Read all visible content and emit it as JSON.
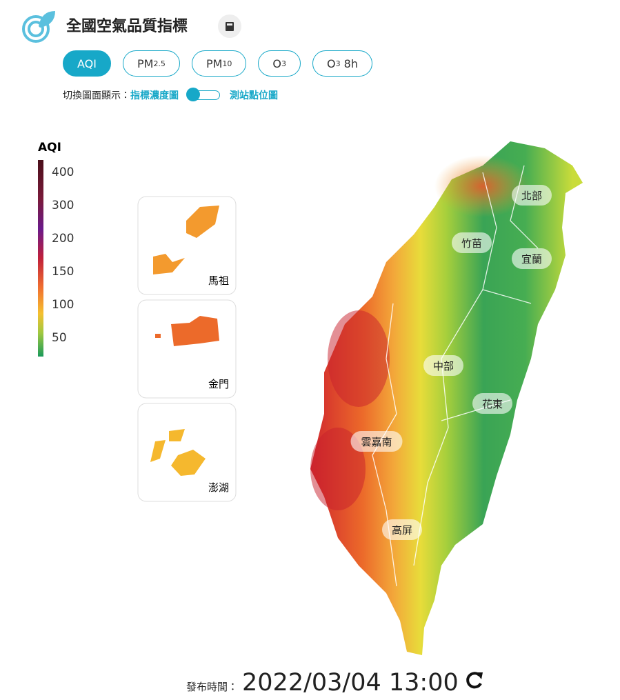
{
  "header": {
    "title": "全國空氣品質指標"
  },
  "tabs": [
    {
      "base": "AQI"
    },
    {
      "base": "PM",
      "sub": "2.5"
    },
    {
      "base": "PM",
      "sub": "10"
    },
    {
      "base": "O",
      "sub": "3"
    },
    {
      "base": "O",
      "sub": "3",
      "suffix": " 8h"
    }
  ],
  "toggle": {
    "label": "切換圖面顯示：",
    "left": "指標濃度圖",
    "right": "測站點位圖"
  },
  "legend": {
    "title": "AQI",
    "ticks": [
      400,
      300,
      200,
      150,
      100,
      50
    ]
  },
  "insets": [
    "馬祖",
    "金門",
    "澎湖"
  ],
  "regions": [
    "北部",
    "竹苗",
    "宜蘭",
    "中部",
    "花東",
    "雲嘉南",
    "高屏"
  ],
  "footer": {
    "label": "發布時間：",
    "time": "2022/03/04 13:00"
  }
}
